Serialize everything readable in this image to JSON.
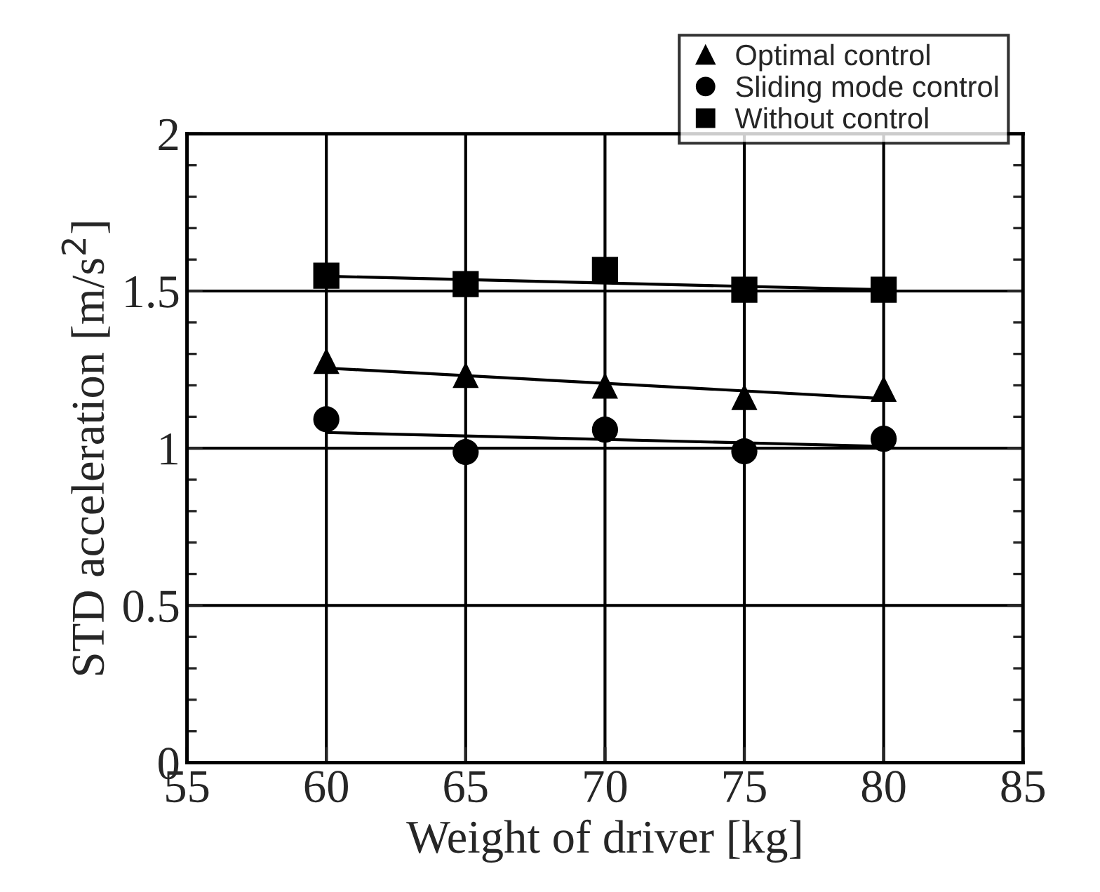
{
  "chart_data": {
    "type": "scatter",
    "xlabel": "Weight of driver [kg]",
    "ylabel": "STD acceleration [m/s$^{2}$]",
    "xlim": [
      55,
      85
    ],
    "xticks": [
      55,
      60,
      65,
      70,
      75,
      80,
      85
    ],
    "ylim": [
      0,
      2
    ],
    "yticks": [
      0,
      0.5,
      1,
      1.5,
      2
    ],
    "grid": true,
    "legend": "top right",
    "series": [
      {
        "name": "Optimal control",
        "marker": "triangle",
        "color": "#000000",
        "x": [
          60,
          65,
          70,
          75,
          80
        ],
        "values": [
          1.278,
          1.233,
          1.199,
          1.163,
          1.189
        ]
      },
      {
        "name": "Sliding mode control",
        "marker": "circle",
        "color": "#000000",
        "x": [
          60,
          65,
          70,
          75,
          80
        ],
        "values": [
          1.092,
          0.988,
          1.059,
          0.99,
          1.03
        ]
      },
      {
        "name": "Without control",
        "marker": "square",
        "color": "#000000",
        "x": [
          60,
          65,
          70,
          75,
          80
        ],
        "values": [
          1.549,
          1.522,
          1.567,
          1.504,
          1.504
        ]
      },
      {
        "type": "line",
        "color": "#000000",
        "x": [
          60,
          80
        ],
        "values": [
          1.255,
          1.158
        ]
      },
      {
        "type": "line",
        "color": "#000000",
        "x": [
          60,
          80
        ],
        "values": [
          1.05,
          1.006
        ]
      },
      {
        "type": "line",
        "color": "#000000",
        "x": [
          60,
          80
        ],
        "values": [
          1.547,
          1.504
        ]
      }
    ]
  }
}
